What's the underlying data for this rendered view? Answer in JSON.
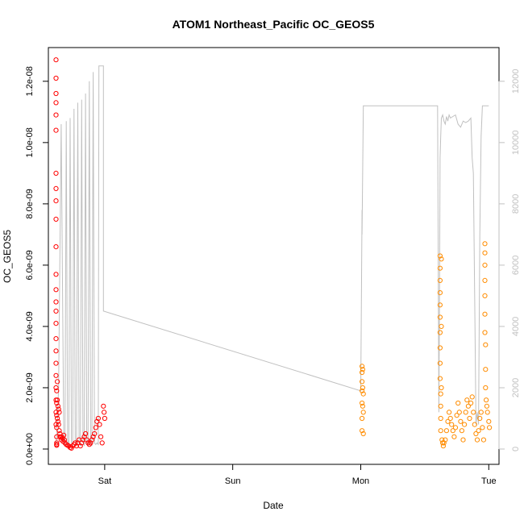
{
  "chart_data": {
    "type": "scatter",
    "title": "ATOM1 Northeast_Pacific OC_GEOS5",
    "xlabel": "Date",
    "ylabel": "OC_GEOS5",
    "x_ticks": [
      "Sat",
      "Sun",
      "Mon",
      "Tue"
    ],
    "x_tick_days": [
      1,
      2,
      3,
      4
    ],
    "xlim_days": [
      0.56,
      4.08
    ],
    "ylim": [
      -5e-10,
      1.31e-08
    ],
    "y_ticks": [
      0,
      2e-09,
      4e-09,
      6e-09,
      8e-09,
      1e-08,
      1.2e-08
    ],
    "y_tick_labels": [
      "0.0e+00",
      "2.0e-09",
      "4.0e-09",
      "6.0e-09",
      "8.0e-09",
      "1.0e-08",
      "1.2e-08"
    ],
    "y2lim": [
      -500,
      13100
    ],
    "y2_ticks": [
      0,
      2000,
      4000,
      6000,
      8000,
      10000,
      12000
    ],
    "y2_tick_labels": [
      "0",
      "2000",
      "4000",
      "6000",
      "8000",
      "10000",
      "12000"
    ],
    "grid": false,
    "colors": {
      "flight1_points": "#ff0000",
      "flight2_points": "#ff8c00",
      "altitude_line": "#c0c0c0",
      "frame": "#000000"
    },
    "series": [
      {
        "color": "#ff0000",
        "style": "open-circles",
        "x": [
          0.62,
          0.62,
          0.62,
          0.62,
          0.62,
          0.62,
          0.62,
          0.62,
          0.62,
          0.62,
          0.62,
          0.62,
          0.62,
          0.62,
          0.62,
          0.62,
          0.62,
          0.62,
          0.62,
          0.62,
          0.62,
          0.62,
          0.62,
          0.62,
          0.625,
          0.625,
          0.625,
          0.625,
          0.625,
          0.625,
          0.625,
          0.625,
          0.63,
          0.63,
          0.63,
          0.635,
          0.635,
          0.64,
          0.64,
          0.645,
          0.645,
          0.65,
          0.65,
          0.655,
          0.66,
          0.665,
          0.67,
          0.675,
          0.68,
          0.685,
          0.69,
          0.7,
          0.71,
          0.72,
          0.73,
          0.74,
          0.75,
          0.76,
          0.77,
          0.78,
          0.79,
          0.8,
          0.81,
          0.82,
          0.83,
          0.84,
          0.85,
          0.86,
          0.87,
          0.88,
          0.89,
          0.9,
          0.91,
          0.92,
          0.93,
          0.94,
          0.95,
          0.96,
          0.97,
          0.98,
          0.99,
          0.995,
          1.0
        ],
        "y": [
          1.27e-08,
          1.21e-08,
          1.16e-08,
          1.13e-08,
          1.09e-08,
          1.04e-08,
          9e-09,
          8.5e-09,
          8.1e-09,
          7.5e-09,
          6.6e-09,
          5.7e-09,
          5.2e-09,
          4.8e-09,
          4.5e-09,
          4.1e-09,
          3.6e-09,
          3.2e-09,
          2.8e-09,
          2.4e-09,
          2e-09,
          1.6e-09,
          1.2e-09,
          8e-10,
          1.9e-09,
          1.5e-09,
          1.1e-09,
          7e-10,
          4e-10,
          2e-10,
          1.5e-10,
          1.2e-10,
          2.2e-09,
          1.6e-09,
          1e-09,
          1.4e-09,
          9e-10,
          1.3e-09,
          8e-10,
          1.2e-09,
          6e-10,
          5e-10,
          4e-10,
          4e-10,
          3e-10,
          4e-10,
          3.5e-10,
          2.5e-10,
          4.5e-10,
          3e-10,
          2e-10,
          1.5e-10,
          1.2e-10,
          1e-10,
          5e-11,
          3e-11,
          1e-10,
          1.5e-10,
          2e-10,
          1e-10,
          2e-10,
          3e-10,
          1e-10,
          2e-10,
          3e-10,
          4e-10,
          5e-10,
          3e-10,
          2e-10,
          1.5e-10,
          2e-10,
          3e-10,
          4e-10,
          5e-10,
          7e-10,
          9e-10,
          1e-09,
          8e-10,
          4e-10,
          2e-10,
          1.4e-09,
          1.2e-09,
          1e-09
        ]
      },
      {
        "color": "#ff8c00",
        "style": "open-circles",
        "x": [
          3.01,
          3.01,
          3.01,
          3.01,
          3.01,
          3.01,
          3.01,
          3.015,
          3.015,
          3.015,
          3.02,
          3.02,
          3.02,
          3.62,
          3.62,
          3.62,
          3.62,
          3.62,
          3.62,
          3.62,
          3.62,
          3.62,
          3.62,
          3.625,
          3.625,
          3.625,
          3.625,
          3.63,
          3.63,
          3.63,
          3.635,
          3.64,
          3.645,
          3.65,
          3.66,
          3.67,
          3.68,
          3.69,
          3.7,
          3.71,
          3.72,
          3.73,
          3.74,
          3.75,
          3.76,
          3.77,
          3.78,
          3.79,
          3.8,
          3.81,
          3.82,
          3.83,
          3.84,
          3.85,
          3.86,
          3.87,
          3.88,
          3.89,
          3.9,
          3.91,
          3.92,
          3.93,
          3.94,
          3.95,
          3.96,
          3.97,
          3.97,
          3.97,
          3.97,
          3.97,
          3.97,
          3.97,
          3.975,
          3.975,
          3.975,
          3.98,
          3.985,
          3.99,
          4.0,
          4.005
        ],
        "y": [
          2.7e-09,
          2.5e-09,
          2.2e-09,
          1.9e-09,
          1.5e-09,
          1e-09,
          6e-10,
          2.6e-09,
          2e-09,
          1.4e-09,
          1.8e-09,
          1.2e-09,
          5e-10,
          6.3e-09,
          5.9e-09,
          5.5e-09,
          5.1e-09,
          4.7e-09,
          4.3e-09,
          3.8e-09,
          3.3e-09,
          2.8e-09,
          2.3e-09,
          1.8e-09,
          1.4e-09,
          1e-09,
          6e-10,
          6.2e-09,
          4e-09,
          2e-09,
          3e-10,
          2e-10,
          1e-10,
          2e-10,
          3e-10,
          6e-10,
          9e-10,
          1.2e-09,
          1e-09,
          8e-10,
          6e-10,
          4e-10,
          7e-10,
          1.1e-09,
          1.5e-09,
          1.2e-09,
          9e-10,
          6e-10,
          3e-10,
          8e-10,
          1.2e-09,
          1.6e-09,
          1.4e-09,
          1e-09,
          1.5e-09,
          1.7e-09,
          1.2e-09,
          8e-10,
          5e-10,
          3e-10,
          6e-10,
          1e-09,
          1.2e-09,
          7e-10,
          3e-10,
          6.7e-09,
          6.4e-09,
          6e-09,
          5.5e-09,
          5e-09,
          4.4e-09,
          3.8e-09,
          3.4e-09,
          2.6e-09,
          2e-09,
          1.6e-09,
          1.4e-09,
          1.2e-09,
          9e-10,
          7e-10
        ]
      }
    ],
    "altitude_line": {
      "axis": "right",
      "color": "#c0c0c0",
      "x": [
        0.62,
        0.625,
        0.64,
        0.66,
        0.68,
        0.69,
        0.7,
        0.71,
        0.72,
        0.73,
        0.74,
        0.75,
        0.76,
        0.77,
        0.78,
        0.79,
        0.8,
        0.81,
        0.82,
        0.83,
        0.84,
        0.85,
        0.86,
        0.87,
        0.88,
        0.89,
        0.9,
        0.91,
        0.92,
        0.93,
        0.94,
        0.95,
        0.955,
        0.99,
        0.99,
        3.0,
        3.01,
        3.01,
        3.02,
        3.02,
        3.03,
        3.03,
        3.05,
        3.1,
        3.2,
        3.3,
        3.4,
        3.5,
        3.6,
        3.61,
        3.615,
        3.62,
        3.625,
        3.63,
        3.64,
        3.65,
        3.66,
        3.67,
        3.68,
        3.69,
        3.7,
        3.72,
        3.74,
        3.76,
        3.78,
        3.8,
        3.82,
        3.84,
        3.86,
        3.87,
        3.88,
        3.89,
        3.895,
        3.9,
        3.905,
        3.91,
        3.92,
        3.93,
        3.94,
        3.95,
        3.96,
        3.97,
        3.975,
        3.98,
        3.985,
        3.99,
        3.995,
        4.0
      ],
      "y": [
        200,
        400,
        2000,
        10600,
        300,
        100,
        10700,
        300,
        100,
        10800,
        200,
        100,
        11100,
        300,
        100,
        11300,
        200,
        100,
        11400,
        300,
        100,
        11600,
        200,
        100,
        12000,
        300,
        100,
        12300,
        200,
        150,
        200,
        150,
        12500,
        12500,
        4500,
        1900,
        7800,
        7000,
        11200,
        11200,
        11200,
        11200,
        11200,
        11200,
        11200,
        11200,
        11200,
        11200,
        11200,
        1200,
        5000,
        9500,
        10200,
        10800,
        10900,
        10700,
        10600,
        10850,
        10700,
        10900,
        10800,
        10850,
        10900,
        10600,
        10500,
        10700,
        10650,
        10700,
        10800,
        9500,
        9000,
        5000,
        3000,
        800,
        1000,
        1200,
        800,
        7000,
        10200,
        11200,
        11200,
        11200,
        11200,
        11200,
        11200,
        11200,
        11200,
        11200
      ]
    }
  }
}
